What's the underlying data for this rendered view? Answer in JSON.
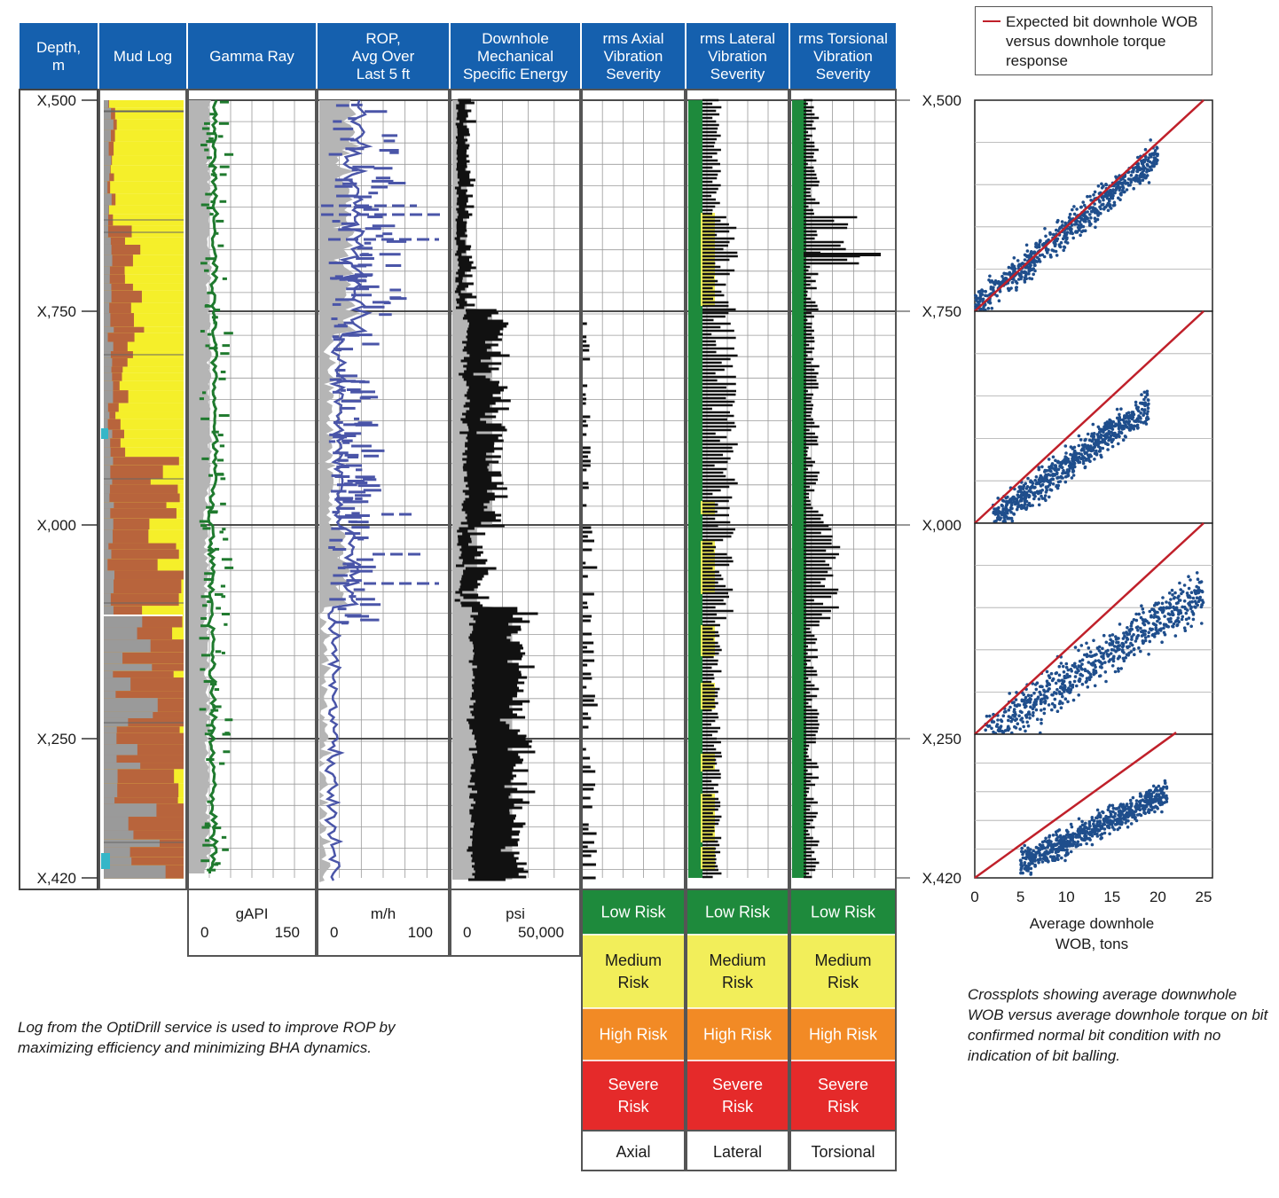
{
  "tracks": {
    "depth_header": [
      "Depth,",
      "m"
    ],
    "mud_log_header": [
      "Mud Log"
    ],
    "gamma_header": [
      "Gamma Ray"
    ],
    "rop_header": [
      "ROP,",
      "Avg Over",
      "Last 5 ft"
    ],
    "mse_header": [
      "Downhole",
      "Mechanical",
      "Specific Energy"
    ],
    "axial_header": [
      "rms Axial",
      "Vibration",
      "Severity"
    ],
    "lateral_header": [
      "rms Lateral",
      "Vibration",
      "Severity"
    ],
    "torsional_header": [
      "rms Torsional",
      "Vibration",
      "Severity"
    ]
  },
  "depth_ticks": [
    "X,500",
    "X,750",
    "X,000",
    "X,250",
    "X,420"
  ],
  "scales": {
    "gamma": {
      "unit": "gAPI",
      "min": "0",
      "max": "150",
      "color": "#1f7a2e"
    },
    "rop": {
      "unit": "m/h",
      "min": "0",
      "max": "100",
      "color": "#4a55a8"
    },
    "mse": {
      "unit": "psi",
      "min": "0",
      "max": "50,000",
      "color": "#1a1a1a"
    }
  },
  "risk_legend": {
    "levels": [
      {
        "label": "Low Risk",
        "color": "#1e8a3c",
        "text_color": "#ffffff"
      },
      {
        "label": "Medium\nRisk",
        "color": "#f2ee5a",
        "text_color": "#1a1a1a"
      },
      {
        "label": "High Risk",
        "color": "#f28a25",
        "text_color": "#ffffff"
      },
      {
        "label": "Severe\nRisk",
        "color": "#e52a2a",
        "text_color": "#ffffff"
      }
    ],
    "columns": [
      "Axial",
      "Lateral",
      "Torsional"
    ]
  },
  "crossplot": {
    "legend": "Expected bit downhole WOB versus downhole torque response",
    "x_ticks": [
      "0",
      "5",
      "10",
      "15",
      "20",
      "25"
    ],
    "xlabel": [
      "Average downhole",
      "WOB, tons"
    ],
    "line_color": "#c0202a",
    "point_color": "#1f4e8c"
  },
  "captions": {
    "left": "Log from the OptiDrill service is used to improve ROP by maximizing efficiency and minimizing BHA dynamics.",
    "right": "Crossplots showing average downwhole WOB versus average downhole torque on bit confirmed normal bit condition with no indication of bit balling."
  },
  "colors": {
    "header_blue": "#1560ae",
    "mud_yellow": "#f5ef2a",
    "mud_brown": "#b8643c",
    "mud_gray": "#9a9a9a",
    "fill_gray": "#b5b5b5",
    "track_border": "#555555"
  },
  "chart_data": [
    {
      "type": "log",
      "title": "",
      "x_axis_tracks": [
        "Gamma Ray (gAPI 0-150)",
        "ROP (m/h 0-100)",
        "Downhole MSE (psi 0-50,000)"
      ],
      "depth_labels": [
        "X,500",
        "X,750",
        "X,000",
        "X,250",
        "X,420"
      ],
      "ylabel": "Depth, m"
    },
    {
      "type": "scatter",
      "panels": 4,
      "xlabel": "Average downhole WOB, tons",
      "xlim": [
        0,
        25
      ],
      "series": [
        {
          "name": "Expected bit downhole WOB versus downhole torque response",
          "kind": "line"
        }
      ],
      "panel_ranges": [
        {
          "x_range": [
            0,
            20
          ],
          "center_slope": "slightly above line"
        },
        {
          "x_range": [
            2,
            19
          ],
          "center_slope": "below line"
        },
        {
          "x_range": [
            1,
            25
          ],
          "center_slope": "below line"
        },
        {
          "x_range": [
            5,
            21
          ],
          "center_slope": "below line"
        }
      ]
    }
  ]
}
